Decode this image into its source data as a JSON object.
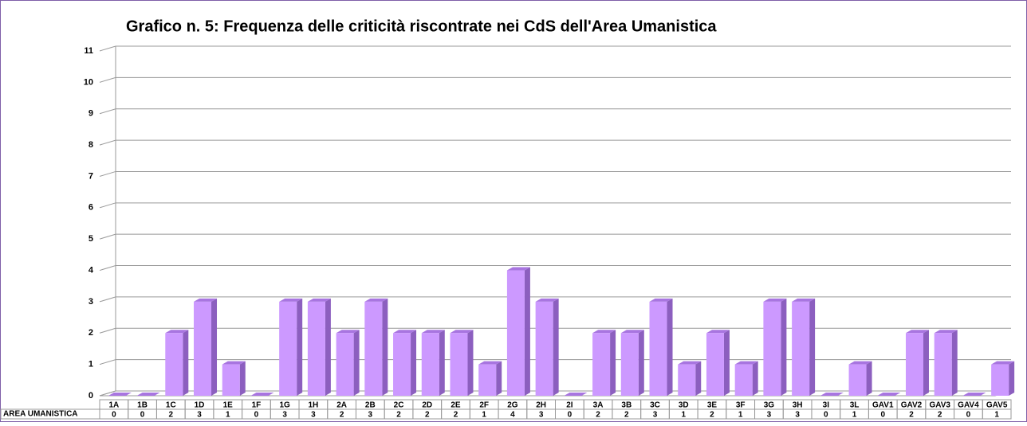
{
  "chart_data": {
    "type": "bar",
    "title": "Grafico n. 5: Frequenza delle criticità riscontrate nei CdS dell'Area Umanistica",
    "categories": [
      "1A",
      "1B",
      "1C",
      "1D",
      "1E",
      "1F",
      "1G",
      "1H",
      "2A",
      "2B",
      "2C",
      "2D",
      "2E",
      "2F",
      "2G",
      "2H",
      "2I",
      "3A",
      "3B",
      "3C",
      "3D",
      "3E",
      "3F",
      "3G",
      "3H",
      "3I",
      "3L",
      "GAV1",
      "GAV2",
      "GAV3",
      "GAV4",
      "GAV5"
    ],
    "series": [
      {
        "name": "AREA UMANISTICA",
        "color": "#cc99ff",
        "values": [
          0,
          0,
          2,
          3,
          1,
          0,
          3,
          3,
          2,
          3,
          2,
          2,
          2,
          1,
          4,
          3,
          0,
          2,
          2,
          3,
          1,
          2,
          1,
          3,
          3,
          0,
          1,
          0,
          2,
          2,
          0,
          1
        ]
      }
    ],
    "ylim": [
      0,
      11
    ],
    "yticks": [
      0,
      1,
      2,
      3,
      4,
      5,
      6,
      7,
      8,
      9,
      10,
      11
    ],
    "grid": true
  }
}
